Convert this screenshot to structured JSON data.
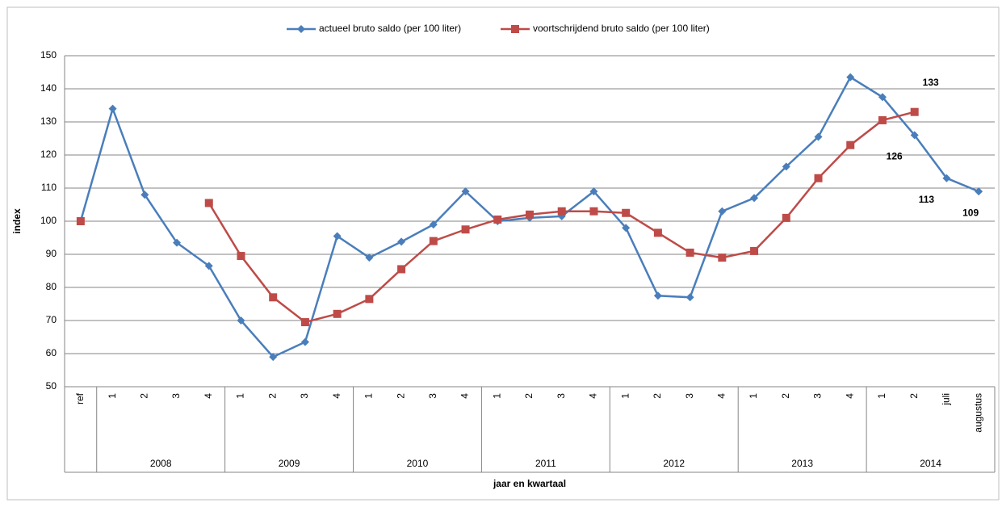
{
  "chart_data": {
    "type": "line",
    "x_label": "jaar en kwartaal",
    "y_label": "index",
    "categories": [
      "ref",
      "1",
      "2",
      "3",
      "4",
      "1",
      "2",
      "3",
      "4",
      "1",
      "2",
      "3",
      "4",
      "1",
      "2",
      "3",
      "4",
      "1",
      "2",
      "3",
      "4",
      "1",
      "2",
      "3",
      "4",
      "1",
      "2",
      "juli",
      "augustus"
    ],
    "groups": [
      {
        "label": "2008",
        "count": 4
      },
      {
        "label": "2009",
        "count": 4
      },
      {
        "label": "2010",
        "count": 4
      },
      {
        "label": "2011",
        "count": 4
      },
      {
        "label": "2012",
        "count": 4
      },
      {
        "label": "2013",
        "count": 4
      },
      {
        "label": "2014",
        "count": 4
      }
    ],
    "series": [
      {
        "name": "actueel bruto saldo (per 100 liter)",
        "color": "#4a7ebb",
        "marker": "diamond",
        "values": [
          100,
          134,
          108,
          93.5,
          86.5,
          70,
          59,
          63.5,
          95.5,
          89,
          93.8,
          99,
          109,
          100,
          101,
          101.5,
          109,
          98,
          77.5,
          77,
          103,
          107,
          116.5,
          125.5,
          143.5,
          137.5,
          126,
          113,
          109
        ],
        "value_labels": [
          null,
          null,
          null,
          null,
          null,
          null,
          null,
          null,
          null,
          null,
          null,
          null,
          null,
          null,
          null,
          null,
          null,
          null,
          null,
          null,
          null,
          null,
          null,
          null,
          null,
          null,
          "126",
          "113",
          "109"
        ]
      },
      {
        "name": "voortschrijdend bruto saldo (per 100 liter)",
        "color": "#be4b48",
        "marker": "square",
        "values": [
          100,
          null,
          null,
          null,
          105.5,
          89.5,
          77,
          69.5,
          72,
          76.5,
          85.5,
          94,
          97.5,
          100.5,
          102,
          103,
          103,
          102.5,
          96.5,
          90.5,
          89,
          91,
          101,
          113,
          123,
          130.5,
          133,
          null,
          null
        ],
        "value_labels": [
          null,
          null,
          null,
          null,
          null,
          null,
          null,
          null,
          null,
          null,
          null,
          null,
          null,
          null,
          null,
          null,
          null,
          null,
          null,
          null,
          null,
          null,
          null,
          null,
          null,
          null,
          "133",
          null,
          null
        ]
      }
    ],
    "ylim": [
      50,
      150
    ],
    "yticks": [
      50,
      60,
      70,
      80,
      90,
      100,
      110,
      120,
      130,
      140,
      150
    ],
    "grid": true,
    "legend": "top"
  }
}
